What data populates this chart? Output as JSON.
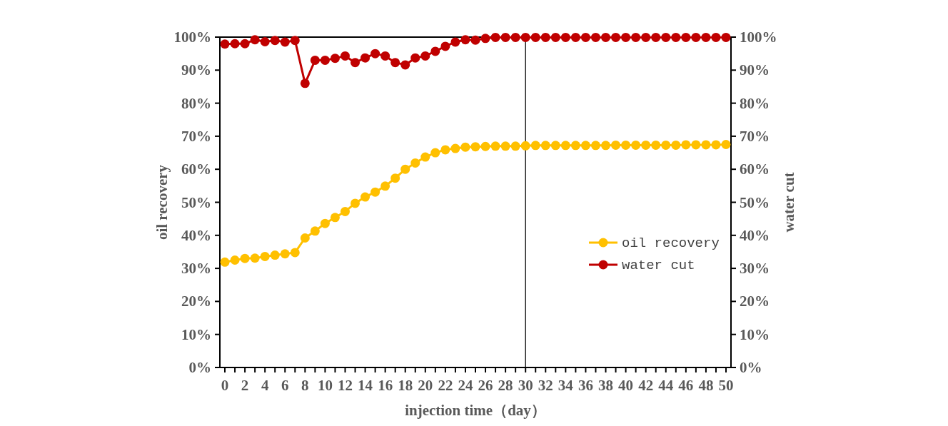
{
  "chart_data": {
    "type": "line",
    "xlabel": "injection time（day）",
    "ylabel": "oil recovery",
    "y2label": "water cut",
    "x": [
      0,
      1,
      2,
      3,
      4,
      5,
      6,
      7,
      8,
      9,
      10,
      11,
      12,
      13,
      14,
      15,
      16,
      17,
      18,
      19,
      20,
      21,
      22,
      23,
      24,
      25,
      26,
      27,
      28,
      29,
      30,
      31,
      32,
      33,
      34,
      35,
      36,
      37,
      38,
      39,
      40,
      41,
      42,
      43,
      44,
      45,
      46,
      47,
      48,
      49,
      50
    ],
    "xlim": [
      -0.5,
      50.5
    ],
    "xticks": [
      0,
      {
        "value": 1,
        "label": null
      },
      2,
      {
        "value": 3,
        "label": null
      },
      4,
      {
        "value": 5,
        "label": null
      },
      6,
      {
        "value": 7,
        "label": null
      },
      8,
      {
        "value": 9,
        "label": null
      },
      10,
      {
        "value": 11,
        "label": null
      },
      12,
      {
        "value": 13,
        "label": null
      },
      14,
      {
        "value": 15,
        "label": null
      },
      16,
      {
        "value": 17,
        "label": null
      },
      18,
      {
        "value": 19,
        "label": null
      },
      20,
      {
        "value": 21,
        "label": null
      },
      22,
      {
        "value": 23,
        "label": null
      },
      24,
      {
        "value": 25,
        "label": null
      },
      26,
      {
        "value": 27,
        "label": null
      },
      28,
      {
        "value": 29,
        "label": null
      },
      30,
      {
        "value": 31,
        "label": null
      },
      32,
      {
        "value": 33,
        "label": null
      },
      34,
      {
        "value": 35,
        "label": null
      },
      36,
      {
        "value": 37,
        "label": null
      },
      38,
      {
        "value": 39,
        "label": null
      },
      40,
      {
        "value": 41,
        "label": null
      },
      42,
      {
        "value": 43,
        "label": null
      },
      44,
      {
        "value": 45,
        "label": null
      },
      46,
      {
        "value": 47,
        "label": null
      },
      48,
      {
        "value": 49,
        "label": null
      },
      50
    ],
    "ylim": [
      0,
      100
    ],
    "yticks": [
      {
        "value": 0,
        "label": "0%"
      },
      {
        "value": 10,
        "label": "10%"
      },
      {
        "value": 20,
        "label": "20%"
      },
      {
        "value": 30,
        "label": "30%"
      },
      {
        "value": 40,
        "label": "40%"
      },
      {
        "value": 50,
        "label": "50%"
      },
      {
        "value": 60,
        "label": "60%"
      },
      {
        "value": 70,
        "label": "70%"
      },
      {
        "value": 80,
        "label": "80%"
      },
      {
        "value": 90,
        "label": "90%"
      },
      {
        "value": 100,
        "label": "100%"
      }
    ],
    "y2lim": [
      0,
      100
    ],
    "y2ticks": [
      {
        "value": 0,
        "label": "0%"
      },
      {
        "value": 10,
        "label": "10%"
      },
      {
        "value": 20,
        "label": "20%"
      },
      {
        "value": 30,
        "label": "30%"
      },
      {
        "value": 40,
        "label": "40%"
      },
      {
        "value": 50,
        "label": "50%"
      },
      {
        "value": 60,
        "label": "60%"
      },
      {
        "value": 70,
        "label": "70%"
      },
      {
        "value": 80,
        "label": "80%"
      },
      {
        "value": 90,
        "label": "90%"
      },
      {
        "value": 100,
        "label": "100%"
      }
    ],
    "series": [
      {
        "name": "oil recovery",
        "color": "#ffc000",
        "values": [
          31.9,
          32.5,
          33.0,
          33.1,
          33.6,
          34.0,
          34.4,
          34.8,
          39.2,
          41.3,
          43.6,
          45.4,
          47.2,
          49.7,
          51.6,
          53.1,
          54.9,
          57.3,
          60.0,
          61.9,
          63.7,
          65.0,
          65.9,
          66.3,
          66.7,
          66.8,
          66.9,
          67.0,
          67.0,
          67.0,
          67.1,
          67.2,
          67.2,
          67.2,
          67.2,
          67.2,
          67.2,
          67.2,
          67.2,
          67.3,
          67.3,
          67.3,
          67.3,
          67.3,
          67.3,
          67.3,
          67.4,
          67.4,
          67.4,
          67.4,
          67.5
        ]
      },
      {
        "name": "water cut",
        "color": "#c00000",
        "values": [
          97.9,
          98.0,
          98.0,
          99.2,
          98.6,
          99.0,
          98.5,
          99.0,
          86.0,
          93.0,
          93.0,
          93.6,
          94.3,
          92.3,
          93.7,
          95.0,
          94.3,
          92.3,
          91.6,
          93.7,
          94.3,
          95.7,
          97.2,
          98.5,
          99.2,
          99.1,
          99.6,
          99.9,
          99.9,
          99.9,
          99.9,
          99.9,
          99.9,
          99.9,
          99.9,
          99.9,
          99.9,
          99.9,
          99.9,
          99.9,
          99.9,
          99.9,
          99.9,
          99.9,
          99.9,
          99.9,
          99.9,
          99.9,
          99.9,
          99.9,
          99.9
        ]
      }
    ],
    "ref_lines": [
      {
        "axis": "x",
        "value": 30,
        "color": "#000000"
      }
    ],
    "legend": "right",
    "marker": "circle",
    "line_style": "solid"
  }
}
